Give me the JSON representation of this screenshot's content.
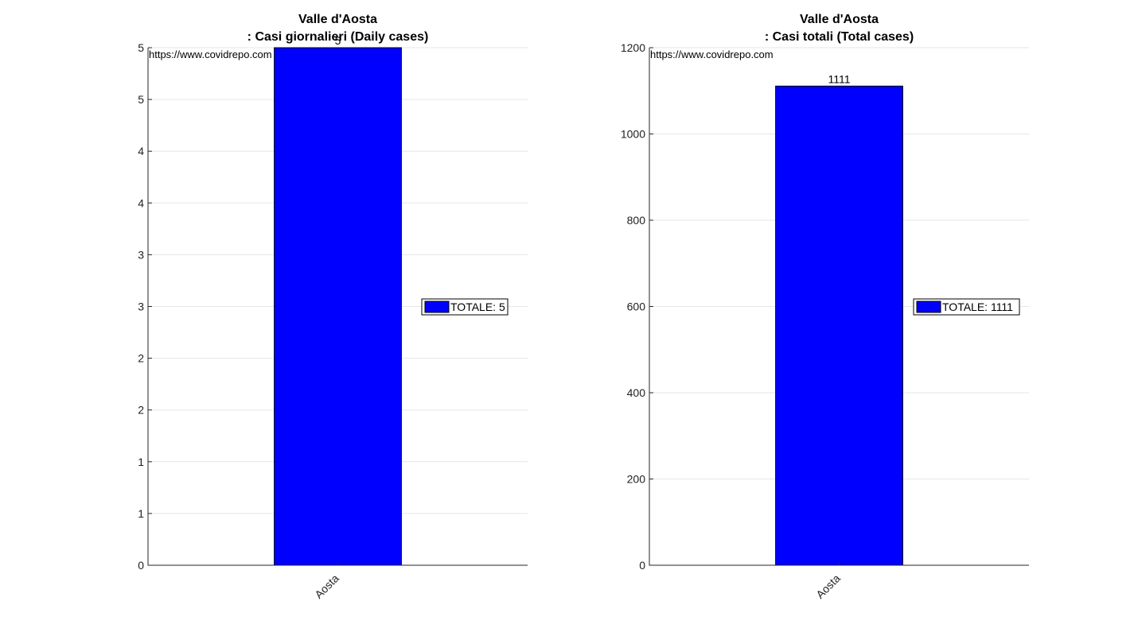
{
  "chart_data": [
    {
      "type": "bar",
      "title_line1": "Valle d'Aosta",
      "title_line2": ": Casi giornalieri (Daily cases)",
      "categories": [
        "Aosta"
      ],
      "values": [
        5
      ],
      "data_labels": [
        "5"
      ],
      "ylim": [
        0,
        5
      ],
      "ytick_values": [
        0,
        0.5,
        1,
        1.5,
        2,
        2.5,
        3,
        3.5,
        4,
        4.5,
        5
      ],
      "ytick_labels": [
        "0",
        "1",
        "1",
        "2",
        "2",
        "3",
        "3",
        "4",
        "4",
        "5",
        "5"
      ],
      "legend": "TOTALE: 5",
      "legend_position": "right",
      "watermark": "https://www.covidrepo.com",
      "bar_color": "#0000ff",
      "grid": true
    },
    {
      "type": "bar",
      "title_line1": "Valle d'Aosta",
      "title_line2": ": Casi totali (Total cases)",
      "categories": [
        "Aosta"
      ],
      "values": [
        1111
      ],
      "data_labels": [
        "1111"
      ],
      "ylim": [
        0,
        1200
      ],
      "ytick_values": [
        0,
        200,
        400,
        600,
        800,
        1000,
        1200
      ],
      "ytick_labels": [
        "0",
        "200",
        "400",
        "600",
        "800",
        "1000",
        "1200"
      ],
      "legend": "TOTALE: 1111",
      "legend_position": "right",
      "watermark": "https://www.covidrepo.com",
      "bar_color": "#0000ff",
      "grid": true
    }
  ]
}
